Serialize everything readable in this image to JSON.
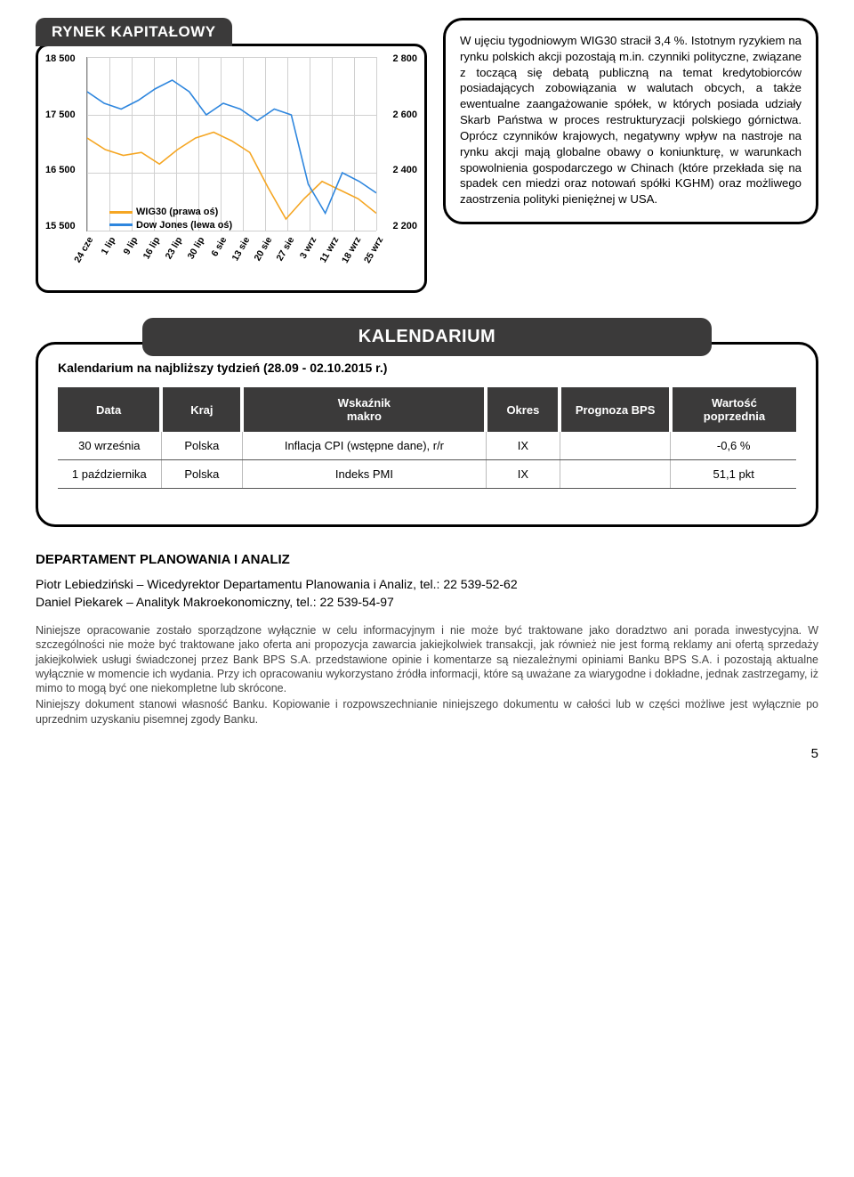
{
  "colors": {
    "tab_bg": "#3b3a3a",
    "tab_fg": "#ffffff",
    "border": "#000000",
    "grid": "#d0d0d0",
    "wig30_line": "#f5a623",
    "dow_line": "#2e86de"
  },
  "section_rynek": "RYNEK KAPITAŁOWY",
  "section_kalendarium": "KALENDARIUM",
  "summary_text": "W ujęciu tygodniowym WIG30 stracił 3,4 %. Istotnym ryzykiem na rynku polskich akcji pozostają m.in. czynniki polityczne, związane z toczącą się debatą publiczną na temat kredytobiorców posiadających zobowiązania w walutach obcych, a także ewentualne zaangażowanie spółek, w których posiada udziały Skarb Państwa w proces restrukturyzacji polskiego górnictwa. Oprócz czynników krajowych, negatywny wpływ na nastroje na rynku akcji mają globalne obawy o koniunkturę, w warunkach spowolnienia gospodarczego w Chinach (które przekłada się na spadek cen miedzi oraz notowań spółki KGHM) oraz możliwego zaostrzenia polityki pieniężnej w USA.",
  "chart": {
    "type": "line-dual-axis",
    "bg": "#ffffff",
    "grid_color": "#d0d0d0",
    "left_label_color": "#000000",
    "right_label_color": "#000000",
    "left_ticks": [
      "18 500",
      "17 500",
      "16 500",
      "15 500"
    ],
    "right_ticks": [
      "2 800",
      "2 600",
      "2 400",
      "2 200"
    ],
    "left_range": [
      15500,
      18500
    ],
    "right_range": [
      2200,
      2800
    ],
    "x_categories": [
      "24 cze",
      "1 lip",
      "9 lip",
      "16 lip",
      "23 lip",
      "30 lip",
      "6 sie",
      "13 sie",
      "20 sie",
      "27 sie",
      "3 wrz",
      "11 wrz",
      "18 wrz",
      "25 wrz"
    ],
    "legend": [
      {
        "label": "WIG30 (prawa oś)",
        "color": "#f5a623",
        "width": 3
      },
      {
        "label": "Dow Jones (lewa oś)",
        "color": "#2e86de",
        "width": 3
      }
    ],
    "wig30": [
      2520,
      2480,
      2460,
      2470,
      2430,
      2480,
      2520,
      2540,
      2510,
      2470,
      2350,
      2240,
      2310,
      2370,
      2340,
      2310,
      2260
    ],
    "dow": [
      17900,
      17700,
      17600,
      17750,
      17950,
      18100,
      17900,
      17500,
      17700,
      17600,
      17400,
      17600,
      17500,
      16300,
      15800,
      16500,
      16350,
      16150
    ]
  },
  "kalendarium": {
    "subtitle": "Kalendarium na najbliższy tydzień (28.09 - 02.10.2015 r.)",
    "columns": [
      "Data",
      "Kraj",
      "Wskaźnik makro",
      "Okres",
      "Prognoza BPS",
      "Wartość poprzednia"
    ],
    "col_widths": [
      "14%",
      "11%",
      "33%",
      "10%",
      "15%",
      "17%"
    ],
    "rows": [
      [
        "30 września",
        "Polska",
        "Inflacja CPI (wstępne dane), r/r",
        "IX",
        "",
        "-0,6 %"
      ],
      [
        "1 października",
        "Polska",
        "Indeks PMI",
        "IX",
        "",
        "51,1 pkt"
      ]
    ]
  },
  "dept": {
    "title": "DEPARTAMENT PLANOWANIA I ANALIZ",
    "contacts": [
      "Piotr Lebiedziński – Wicedyrektor Departamentu Planowania i Analiz, tel.: 22 539-52-62",
      "Daniel Piekarek – Analityk Makroekonomiczny, tel.: 22 539-54-97"
    ],
    "disclaimer": "Niniejsze opracowanie zostało sporządzone wyłącznie w celu informacyjnym i nie może być traktowane jako doradztwo ani porada inwestycyjna. W szczególności nie może być traktowane jako oferta ani propozycja zawarcia jakiejkolwiek transakcji, jak również nie jest formą reklamy ani ofertą sprzedaży jakiejkolwiek usługi świadczonej przez Bank BPS S.A. przedstawione opinie i komentarze są niezależnymi opiniami Banku BPS S.A. i pozostają aktualne wyłącznie w momencie ich wydania. Przy ich opracowaniu wykorzystano źródła informacji, które są uważane za wiarygodne i dokładne, jednak zastrzegamy, iż mimo to mogą być one niekompletne lub skrócone.\nNiniejszy dokument stanowi własność Banku. Kopiowanie i rozpowszechnianie niniejszego dokumentu w całości lub w części możliwe jest wyłącznie po uprzednim uzyskaniu pisemnej zgody Banku."
  },
  "page_number": "5"
}
